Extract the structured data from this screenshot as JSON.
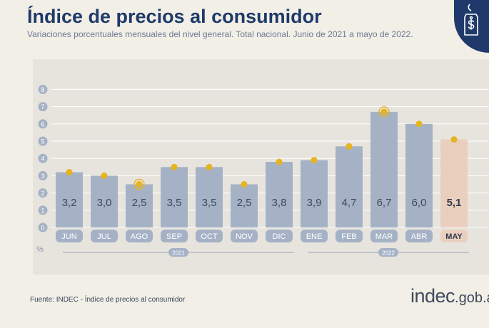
{
  "header": {
    "title": "Índice de precios al consumidor",
    "subtitle": "Variaciones porcentuales mensuales del nivel general. Total nacional. Junio de 2021 a mayo de 2022."
  },
  "badge": {
    "icon": "price-tag-icon"
  },
  "footer": {
    "source": "Fuente: INDEC - Índice de precios al consumidor",
    "brand_main": "indec",
    "brand_domain": ".gob.a"
  },
  "chart_data": {
    "type": "bar",
    "categories": [
      "JUN",
      "JUL",
      "AGO",
      "SEP",
      "OCT",
      "NOV",
      "DIC",
      "ENE",
      "FEB",
      "MAR",
      "ABR",
      "MAY"
    ],
    "values": [
      3.2,
      3.0,
      2.5,
      3.5,
      3.5,
      2.5,
      3.8,
      3.9,
      4.7,
      6.7,
      6.0,
      5.1
    ],
    "value_labels": [
      "3,2",
      "3,0",
      "2,5",
      "3,5",
      "3,5",
      "2,5",
      "3,8",
      "3,9",
      "4,7",
      "6,7",
      "6,0",
      "5,1"
    ],
    "highlighted": [
      "MAY"
    ],
    "marked_points": [
      "AGO",
      "MAR"
    ],
    "ylim": [
      0,
      8
    ],
    "yticks": [
      0,
      1,
      2,
      3,
      4,
      5,
      6,
      7,
      8
    ],
    "ylabel": "%",
    "years": [
      {
        "label": "2021",
        "from": "JUN",
        "to": "DIC"
      },
      {
        "label": "2022",
        "from": "ENE",
        "to": "MAY"
      }
    ],
    "grid": true,
    "colors": {
      "bar": "#a5b2c6",
      "highlight_bar": "#ebcfbe",
      "marker": "#e5b41e",
      "label_text": "#3d4a5e",
      "highlight_label_text": "#2f3a4f"
    }
  }
}
